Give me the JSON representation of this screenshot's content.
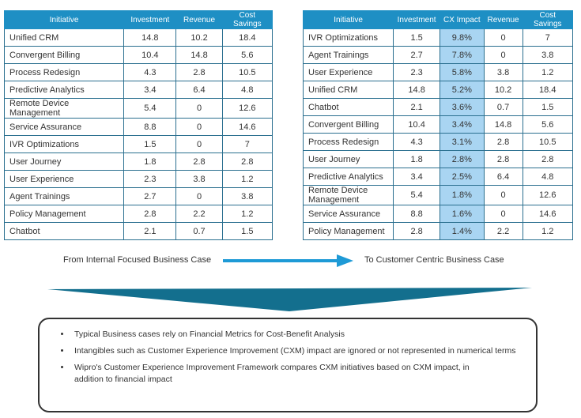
{
  "left_table": {
    "headers": [
      "Initiative",
      "Investment",
      "Revenue",
      "Cost Savings"
    ],
    "rows": [
      [
        "Unified CRM",
        "14.8",
        "10.2",
        "18.4"
      ],
      [
        "Convergent Billing",
        "10.4",
        "14.8",
        "5.6"
      ],
      [
        "Process Redesign",
        "4.3",
        "2.8",
        "10.5"
      ],
      [
        "Predictive Analytics",
        "3.4",
        "6.4",
        "4.8"
      ],
      [
        "Remote Device Management",
        "5.4",
        "0",
        "12.6"
      ],
      [
        "Service Assurance",
        "8.8",
        "0",
        "14.6"
      ],
      [
        "IVR Optimizations",
        "1.5",
        "0",
        "7"
      ],
      [
        "User Journey",
        "1.8",
        "2.8",
        "2.8"
      ],
      [
        "User Experience",
        "2.3",
        "3.8",
        "1.2"
      ],
      [
        "Agent Trainings",
        "2.7",
        "0",
        "3.8"
      ],
      [
        "Policy Management",
        "2.8",
        "2.2",
        "1.2"
      ],
      [
        "Chatbot",
        "2.1",
        "0.7",
        "1.5"
      ]
    ]
  },
  "right_table": {
    "headers": [
      "Initiative",
      "Investment",
      "CX Impact",
      "Revenue",
      "Cost Savings"
    ],
    "rows": [
      [
        "IVR Optimizations",
        "1.5",
        "9.8%",
        "0",
        "7"
      ],
      [
        "Agent Trainings",
        "2.7",
        "7.8%",
        "0",
        "3.8"
      ],
      [
        "User Experience",
        "2.3",
        "5.8%",
        "3.8",
        "1.2"
      ],
      [
        "Unified CRM",
        "14.8",
        "5.2%",
        "10.2",
        "18.4"
      ],
      [
        "Chatbot",
        "2.1",
        "3.6%",
        "0.7",
        "1.5"
      ],
      [
        "Convergent Billing",
        "10.4",
        "3.4%",
        "14.8",
        "5.6"
      ],
      [
        "Process Redesign",
        "4.3",
        "3.1%",
        "2.8",
        "10.5"
      ],
      [
        "User Journey",
        "1.8",
        "2.8%",
        "2.8",
        "2.8"
      ],
      [
        "Predictive Analytics",
        "3.4",
        "2.5%",
        "6.4",
        "4.8"
      ],
      [
        "Remote Device Management",
        "5.4",
        "1.8%",
        "0",
        "12.6"
      ],
      [
        "Service Assurance",
        "8.8",
        "1.6%",
        "0",
        "14.6"
      ],
      [
        "Policy Management",
        "2.8",
        "1.4%",
        "2.2",
        "1.2"
      ]
    ]
  },
  "transition": {
    "from": "From Internal Focused Business Case",
    "to": "To Customer Centric Business Case"
  },
  "bullets": [
    "Typical Business cases rely on Financial Metrics for Cost-Benefit Analysis",
    "Intangibles such as Customer Experience Improvement (CXM) impact are ignored or not represented in numerical terms",
    "Wipro's Customer Experience Improvement Framework compares CXM initiatives based on CXM impact, in addition to financial impact"
  ],
  "colors": {
    "header": "#1e8fc4",
    "cx_highlight": "#a9d5f2",
    "chevron": "#136f8e",
    "arrow": "#1e9ad6"
  }
}
